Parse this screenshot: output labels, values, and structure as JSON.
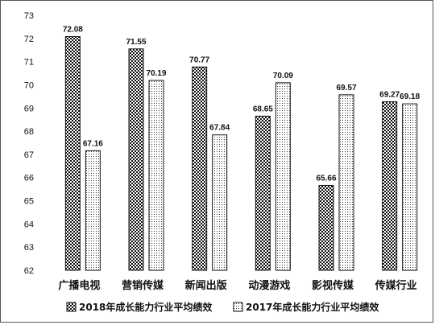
{
  "chart_data": {
    "type": "bar",
    "categories": [
      "广播电视",
      "营销传媒",
      "新闻出版",
      "动漫游戏",
      "影视传媒",
      "传媒行业"
    ],
    "series": [
      {
        "name": "2018年成长能力行业平均绩效",
        "values": [
          72.08,
          71.55,
          70.77,
          68.65,
          65.66,
          69.27
        ],
        "pattern": "checker"
      },
      {
        "name": "2017年成长能力行业平均绩效",
        "values": [
          67.16,
          70.19,
          67.84,
          70.09,
          69.57,
          69.18
        ],
        "pattern": "dots"
      }
    ],
    "data_labels": [
      [
        "72.08",
        "71.55",
        "70.77",
        "68.65",
        "65.66",
        "69.27"
      ],
      [
        "67.16",
        "70.19",
        "67.84",
        "70.09",
        "69.57",
        "69.18"
      ]
    ],
    "ylim": [
      62,
      73
    ],
    "y_ticks": [
      "62",
      "63",
      "64",
      "65",
      "66",
      "67",
      "68",
      "69",
      "70",
      "71",
      "72",
      "73"
    ],
    "grid": false,
    "legend_position": "bottom",
    "title": "",
    "xlabel": "",
    "ylabel": ""
  }
}
